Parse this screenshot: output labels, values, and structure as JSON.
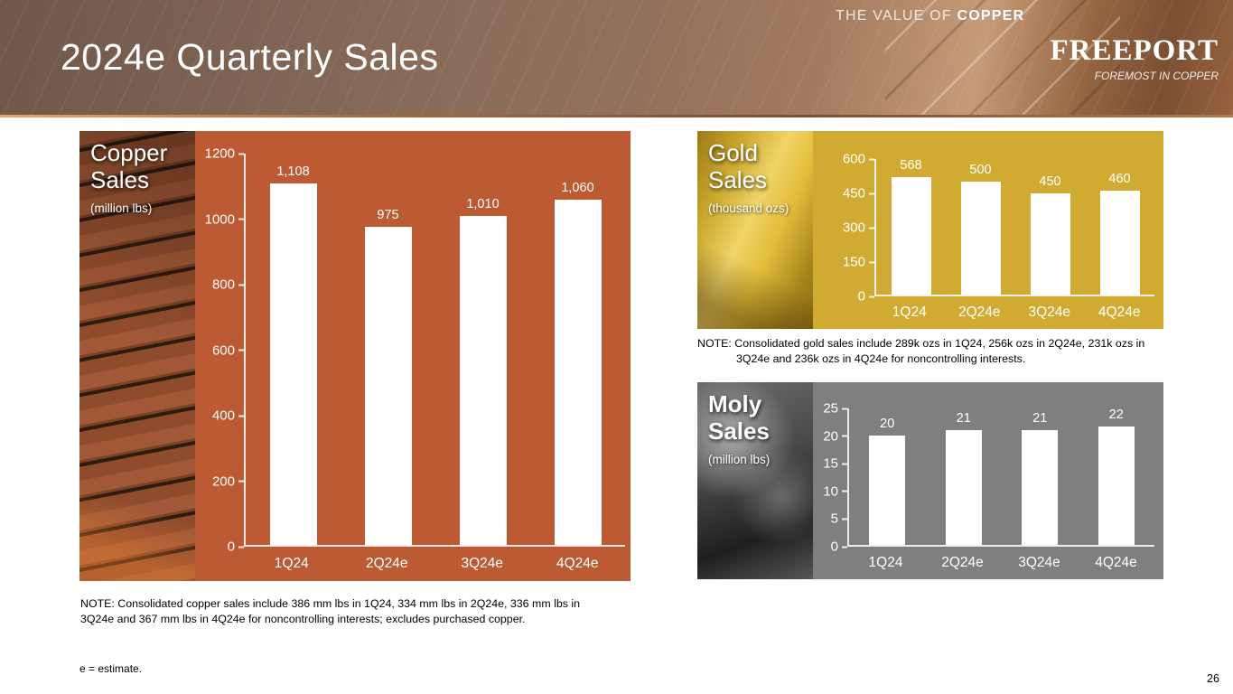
{
  "header": {
    "title": "2024e Quarterly Sales",
    "tagline_prefix": "THE VALUE OF ",
    "tagline_emphasis": "COPPER",
    "logo_text": "FREEPORT",
    "logo_tagline": "FOREMOST IN COPPER"
  },
  "notes": {
    "copper": "NOTE: Consolidated copper sales include 386 mm lbs in 1Q24, 334 mm lbs in 2Q24e, 336 mm lbs in 3Q24e and 367 mm lbs in 4Q24e for noncontrolling interests; excludes purchased copper.",
    "gold": "NOTE: Consolidated gold sales include 289k ozs in 1Q24, 256k ozs in 2Q24e, 231k ozs in 3Q24e and 236k ozs in 4Q24e for noncontrolling interests."
  },
  "footer": {
    "estimate_note": "e = estimate.",
    "page_number": "26"
  },
  "chart_data": [
    {
      "id": "copper",
      "type": "bar",
      "title": "Copper\nSales",
      "unit_label": "(million lbs)",
      "categories": [
        "1Q24",
        "2Q24e",
        "3Q24e",
        "4Q24e"
      ],
      "values": [
        1108,
        975,
        1010,
        1060
      ],
      "value_labels": [
        "1,108",
        "975",
        "1,010",
        "1,060"
      ],
      "ylim": [
        0,
        1200
      ],
      "yticks": [
        0,
        200,
        400,
        600,
        800,
        1000,
        1200
      ],
      "panel_color": "#bc5a34",
      "bar_color": "#ffffff"
    },
    {
      "id": "gold",
      "type": "bar",
      "title": "Gold\nSales",
      "unit_label": "(thousand ozs)",
      "categories": [
        "1Q24",
        "2Q24e",
        "3Q24e",
        "4Q24e"
      ],
      "values": [
        568,
        500,
        450,
        460
      ],
      "value_labels": [
        "568",
        "500",
        "450",
        "460"
      ],
      "ylim": [
        0,
        600
      ],
      "yticks": [
        0,
        150,
        300,
        450,
        600
      ],
      "panel_color": "#d1ab31",
      "bar_color": "#ffffff"
    },
    {
      "id": "moly",
      "type": "bar",
      "title": "Moly\nSales",
      "unit_label": "(million lbs)",
      "categories": [
        "1Q24",
        "2Q24e",
        "3Q24e",
        "4Q24e"
      ],
      "values": [
        20,
        21,
        21,
        22
      ],
      "value_labels": [
        "20",
        "21",
        "21",
        "22"
      ],
      "ylim": [
        0,
        25
      ],
      "yticks": [
        0,
        5,
        10,
        15,
        20,
        25
      ],
      "panel_color": "#7f7f7f",
      "bar_color": "#ffffff"
    }
  ]
}
